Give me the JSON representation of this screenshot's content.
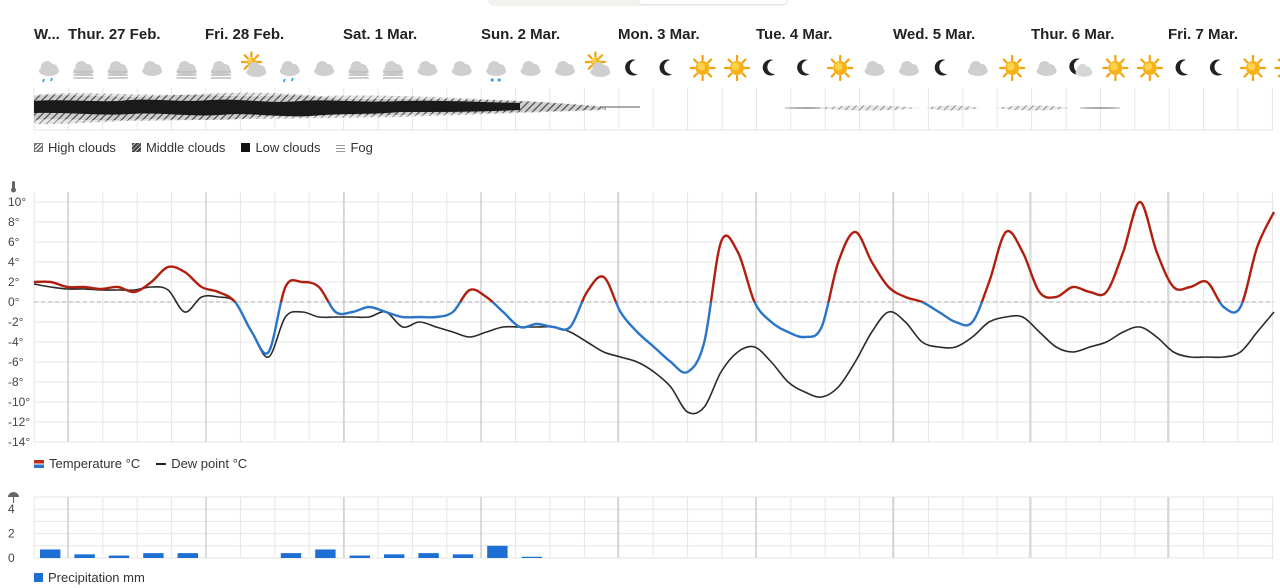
{
  "day_labels": [
    "W...",
    "Thur. 27 Feb.",
    "Fri. 28 Feb.",
    "Sat. 1 Mar.",
    "Sun. 2 Mar.",
    "Mon. 3 Mar.",
    "Tue. 4 Mar.",
    "Wed. 5 Mar.",
    "Thur. 6 Mar.",
    "Fri. 7 Mar."
  ],
  "weather_icons": [
    "cloud-rain-icon",
    "cloud-fog-icon",
    "cloud-fog-icon",
    "cloud-icon",
    "cloud-fog-icon",
    "cloud-fog-icon",
    "sun-cloud-icon",
    "cloud-rain-icon",
    "cloud-icon",
    "cloud-fog-icon",
    "cloud-fog-icon",
    "cloud-icon",
    "cloud-icon",
    "cloud-snow-icon",
    "cloud-icon",
    "cloud-icon",
    "sun-cloud-icon",
    "moon-icon",
    "moon-icon",
    "sun-icon",
    "sun-icon",
    "moon-icon",
    "moon-icon",
    "sun-icon",
    "cloud-icon",
    "cloud-icon",
    "moon-icon",
    "cloud-icon",
    "sun-icon",
    "cloud-icon",
    "moon-cloud-icon",
    "sun-icon",
    "sun-icon",
    "moon-icon",
    "moon-icon",
    "sun-icon",
    "sun-icon"
  ],
  "cloud_legend": {
    "high": "High clouds",
    "middle": "Middle clouds",
    "low": "Low clouds",
    "fog": "Fog"
  },
  "temp_legend": {
    "temperature": "Temperature °C",
    "dew_point": "Dew point °C"
  },
  "precip_legend": {
    "precipitation": "Precipitation mm"
  },
  "colors": {
    "temp_above": "#b01f0f",
    "temp_below": "#2a74c9",
    "dew": "#2b2b2b",
    "precip": "#1e6fd3",
    "grid": "#e6e6e6",
    "day_line": "#bdbdbd"
  },
  "chart_data": [
    {
      "type": "line",
      "title": "",
      "x": [
        0,
        1,
        2,
        3,
        4,
        5,
        6,
        7,
        8,
        9,
        10,
        11,
        12,
        13,
        14,
        15,
        16,
        17,
        18,
        19,
        20,
        21,
        22,
        23,
        24,
        25,
        26,
        27,
        28,
        29,
        30,
        31,
        32,
        33,
        34,
        35,
        36,
        37,
        38,
        39,
        40,
        41,
        42,
        43,
        44,
        45,
        46,
        47,
        48,
        49,
        50,
        51,
        52,
        53,
        54,
        55,
        56,
        57,
        58,
        59,
        60,
        61,
        62,
        63,
        64,
        65,
        66,
        67,
        68,
        69,
        70,
        71,
        72,
        73,
        74
      ],
      "ylim": [
        -14,
        10
      ],
      "yticks": [
        "10°",
        "8°",
        "6°",
        "4°",
        "2°",
        "0°",
        "-2°",
        "-4°",
        "-6°",
        "-8°",
        "-10°",
        "-12°",
        "-14°"
      ],
      "series": [
        {
          "name": "Temperature °C",
          "values": [
            2,
            2,
            1.5,
            1.5,
            1.3,
            1.5,
            1,
            2,
            3.5,
            3,
            1.5,
            1,
            0,
            -3,
            -5,
            1.5,
            2,
            1.5,
            -1,
            -1,
            -0.5,
            -1,
            -1.5,
            -1.5,
            -1.5,
            -1,
            1.2,
            0.5,
            -1,
            -2.5,
            -2.2,
            -2.5,
            -2.5,
            1,
            2.5,
            -1,
            -3,
            -4.5,
            -6,
            -7,
            -4,
            6,
            5,
            0,
            -2,
            -3,
            -3.5,
            -2.5,
            4,
            7,
            4,
            1.5,
            0.5,
            0,
            -1,
            -2,
            -2,
            2,
            7,
            5,
            1,
            0.5,
            1.5,
            1,
            1,
            5,
            10,
            5,
            1.5,
            1.5,
            2,
            -0.5,
            -0.5,
            5.5,
            9
          ]
        },
        {
          "name": "Dew point °C",
          "values": [
            1.8,
            1.5,
            1.3,
            1.3,
            1.2,
            1.2,
            1.2,
            1.5,
            1.2,
            -1,
            0.5,
            0.5,
            0,
            -3,
            -5.5,
            -1.5,
            -1,
            -1.5,
            -1.5,
            -1.5,
            -1.5,
            -1,
            -2.5,
            -2,
            -2.5,
            -3,
            -3.5,
            -3,
            -2.5,
            -2.5,
            -2.5,
            -2.5,
            -3,
            -4,
            -5,
            -5.5,
            -6,
            -7,
            -8.5,
            -11,
            -10.5,
            -7,
            -5,
            -4.5,
            -6,
            -8,
            -9,
            -9.5,
            -8.5,
            -6,
            -3,
            -1,
            -2,
            -4,
            -4.5,
            -4.5,
            -3.5,
            -2,
            -1.5,
            -1.5,
            -3,
            -4.5,
            -5,
            -4.5,
            -4,
            -3,
            -2.5,
            -3.5,
            -5,
            -5.5,
            -5.5,
            -5.5,
            -5,
            -3,
            -1
          ]
        }
      ]
    },
    {
      "type": "bar",
      "title": "",
      "ylim": [
        0,
        5
      ],
      "yticks": [
        "4",
        "2",
        "0"
      ],
      "categories": [
        "1",
        "2",
        "3",
        "4",
        "5",
        "6",
        "7",
        "8",
        "9",
        "10",
        "11",
        "12",
        "13",
        "14",
        "15",
        "16",
        "17",
        "18",
        "19",
        "20",
        "21",
        "22",
        "23",
        "24",
        "25",
        "26",
        "27",
        "28",
        "29",
        "30",
        "31",
        "32",
        "33",
        "34",
        "35",
        "36",
        "37"
      ],
      "values": [
        0.7,
        0.3,
        0.2,
        0.4,
        0.4,
        0,
        0,
        0.4,
        0.7,
        0.2,
        0.3,
        0.4,
        0.3,
        1.0,
        0.1,
        0,
        0,
        0,
        0,
        0,
        0,
        0,
        0,
        0,
        0,
        0,
        0,
        0,
        0,
        0,
        0,
        0,
        0,
        0,
        0,
        0,
        0
      ]
    }
  ]
}
